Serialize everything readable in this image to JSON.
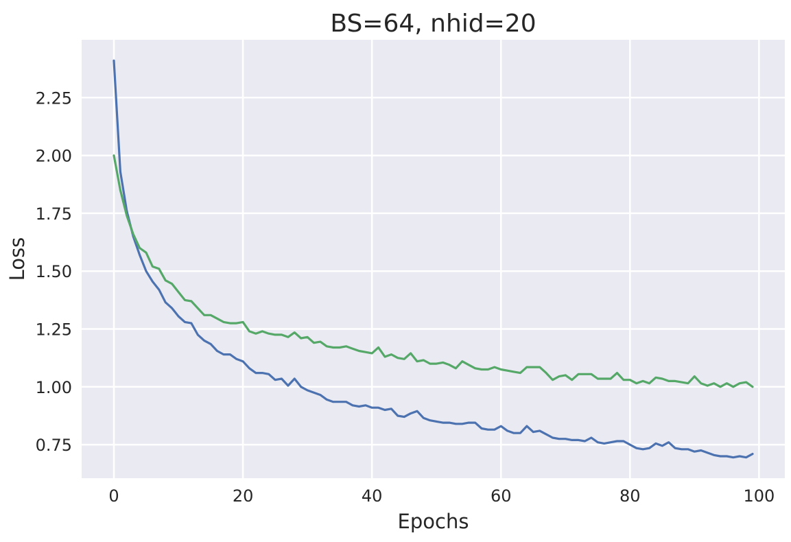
{
  "chart_data": {
    "type": "line",
    "title": "BS=64, nhid=20",
    "xlabel": "Epochs",
    "ylabel": "Loss",
    "xlim": [
      -5,
      104
    ],
    "ylim": [
      0.605,
      2.5
    ],
    "x_ticks": [
      0,
      20,
      40,
      60,
      80,
      100
    ],
    "y_ticks": [
      0.75,
      1.0,
      1.25,
      1.5,
      1.75,
      2.0,
      2.25
    ],
    "x_tick_labels": [
      "0",
      "20",
      "40",
      "60",
      "80",
      "100"
    ],
    "y_tick_labels": [
      "0.75",
      "1.00",
      "1.25",
      "1.50",
      "1.75",
      "2.00",
      "2.25"
    ],
    "grid": true,
    "background": "#eaeaf2",
    "x": [
      0,
      1,
      2,
      3,
      4,
      5,
      6,
      7,
      8,
      9,
      10,
      11,
      12,
      13,
      14,
      15,
      16,
      17,
      18,
      19,
      20,
      21,
      22,
      23,
      24,
      25,
      26,
      27,
      28,
      29,
      30,
      31,
      32,
      33,
      34,
      35,
      36,
      37,
      38,
      39,
      40,
      41,
      42,
      43,
      44,
      45,
      46,
      47,
      48,
      49,
      50,
      51,
      52,
      53,
      54,
      55,
      56,
      57,
      58,
      59,
      60,
      61,
      62,
      63,
      64,
      65,
      66,
      67,
      68,
      69,
      70,
      71,
      72,
      73,
      74,
      75,
      76,
      77,
      78,
      79,
      80,
      81,
      82,
      83,
      84,
      85,
      86,
      87,
      88,
      89,
      90,
      91,
      92,
      93,
      94,
      95,
      96,
      97,
      98,
      99
    ],
    "series": [
      {
        "color": "#4c72b0",
        "values": [
          2.41,
          1.93,
          1.76,
          1.65,
          1.57,
          1.5,
          1.455,
          1.42,
          1.365,
          1.34,
          1.305,
          1.28,
          1.275,
          1.225,
          1.2,
          1.185,
          1.155,
          1.14,
          1.14,
          1.12,
          1.11,
          1.08,
          1.06,
          1.06,
          1.055,
          1.03,
          1.035,
          1.005,
          1.035,
          1.0,
          0.985,
          0.975,
          0.965,
          0.945,
          0.935,
          0.935,
          0.935,
          0.92,
          0.915,
          0.92,
          0.91,
          0.91,
          0.9,
          0.905,
          0.875,
          0.87,
          0.885,
          0.895,
          0.865,
          0.855,
          0.85,
          0.845,
          0.845,
          0.84,
          0.84,
          0.845,
          0.845,
          0.82,
          0.815,
          0.815,
          0.83,
          0.81,
          0.8,
          0.8,
          0.83,
          0.805,
          0.81,
          0.795,
          0.78,
          0.775,
          0.775,
          0.77,
          0.77,
          0.765,
          0.78,
          0.76,
          0.755,
          0.76,
          0.765,
          0.765,
          0.75,
          0.735,
          0.73,
          0.735,
          0.755,
          0.745,
          0.76,
          0.735,
          0.73,
          0.73,
          0.72,
          0.725,
          0.715,
          0.705,
          0.7,
          0.7,
          0.695,
          0.7,
          0.695,
          0.71
        ]
      },
      {
        "color": "#55a868",
        "values": [
          2.0,
          1.85,
          1.74,
          1.66,
          1.6,
          1.58,
          1.52,
          1.51,
          1.46,
          1.445,
          1.41,
          1.375,
          1.37,
          1.34,
          1.31,
          1.31,
          1.295,
          1.28,
          1.275,
          1.275,
          1.28,
          1.24,
          1.23,
          1.24,
          1.23,
          1.225,
          1.225,
          1.215,
          1.235,
          1.21,
          1.215,
          1.19,
          1.195,
          1.175,
          1.17,
          1.17,
          1.175,
          1.165,
          1.155,
          1.15,
          1.145,
          1.17,
          1.13,
          1.14,
          1.125,
          1.12,
          1.145,
          1.11,
          1.115,
          1.1,
          1.1,
          1.105,
          1.095,
          1.08,
          1.11,
          1.095,
          1.08,
          1.075,
          1.075,
          1.085,
          1.075,
          1.07,
          1.065,
          1.06,
          1.085,
          1.085,
          1.085,
          1.06,
          1.03,
          1.045,
          1.05,
          1.03,
          1.055,
          1.055,
          1.055,
          1.035,
          1.035,
          1.035,
          1.06,
          1.03,
          1.03,
          1.015,
          1.025,
          1.015,
          1.04,
          1.035,
          1.025,
          1.025,
          1.02,
          1.015,
          1.045,
          1.015,
          1.005,
          1.015,
          1.0,
          1.015,
          1.0,
          1.015,
          1.02,
          1.0
        ]
      }
    ]
  }
}
